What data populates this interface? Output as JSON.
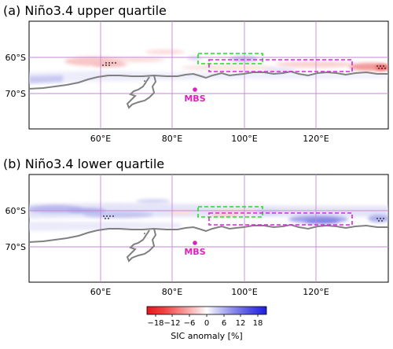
{
  "panels": [
    {
      "title": "(a) Niño3.4 upper quartile",
      "mbs_label": "MBS",
      "lat_ticks": [
        "60°S",
        "70°S"
      ],
      "lon_ticks": [
        "60°E",
        "80°E",
        "100°E",
        "120°E"
      ]
    },
    {
      "title": "(b) Niño3.4 lower quartile",
      "mbs_label": "MBS",
      "lat_ticks": [
        "60°S",
        "70°S"
      ],
      "lon_ticks": [
        "60°E",
        "80°E",
        "100°E",
        "120°E"
      ]
    }
  ],
  "colorbar": {
    "label": "SIC anomaly [%]",
    "ticks": [
      "−18",
      "−12",
      "−6",
      "0",
      "6",
      "12",
      "18"
    ],
    "range": [
      -21,
      21
    ],
    "negative_color": "#e8141e",
    "positive_color": "#1e1ee0"
  },
  "colors": {
    "coastline": "#808080",
    "grid": "#c58ad6",
    "box_green": "#22dd22",
    "box_magenta": "#dd22dd",
    "mbs_marker": "#dd22bb"
  }
}
